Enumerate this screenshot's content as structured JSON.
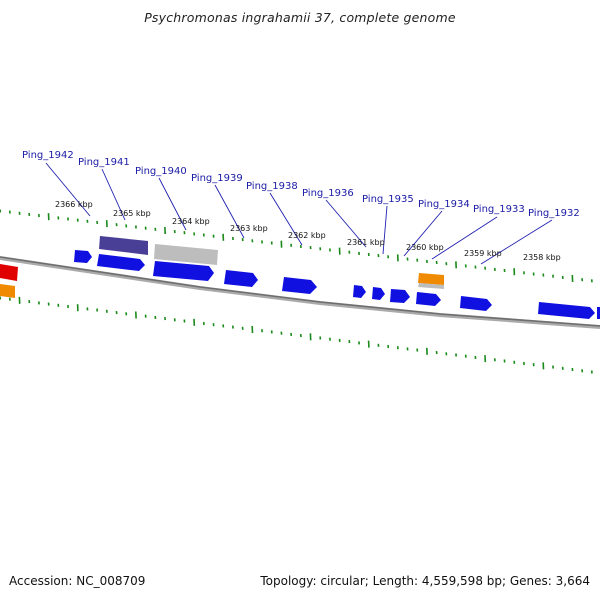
{
  "title": "Psychromonas ingrahamii 37, complete genome",
  "footer": {
    "accession": "Accession: NC_008709",
    "summary": "Topology: circular; Length: 4,559,598 bp; Genes: 3,664"
  },
  "gene_labels": [
    "Ping_1942",
    "Ping_1941",
    "Ping_1940",
    "Ping_1939",
    "Ping_1938",
    "Ping_1936",
    "Ping_1935",
    "Ping_1934",
    "Ping_1933",
    "Ping_1932"
  ],
  "kbp_labels": [
    "2366 kbp",
    "2365 kbp",
    "2364 kbp",
    "2363 kbp",
    "2362 kbp",
    "2361 kbp",
    "2360 kbp",
    "2359 kbp",
    "2358 kbp"
  ],
  "colors": {
    "gene_blue": "#1010e0",
    "gene_purple": "#4a3f96",
    "gene_gray": "#bdbdbd",
    "gene_orange": "#f08a00",
    "gene_red": "#e00000",
    "tick_green": "#1a8a1a",
    "backbone": "#777777",
    "label_blue": "#1a1aa6"
  }
}
